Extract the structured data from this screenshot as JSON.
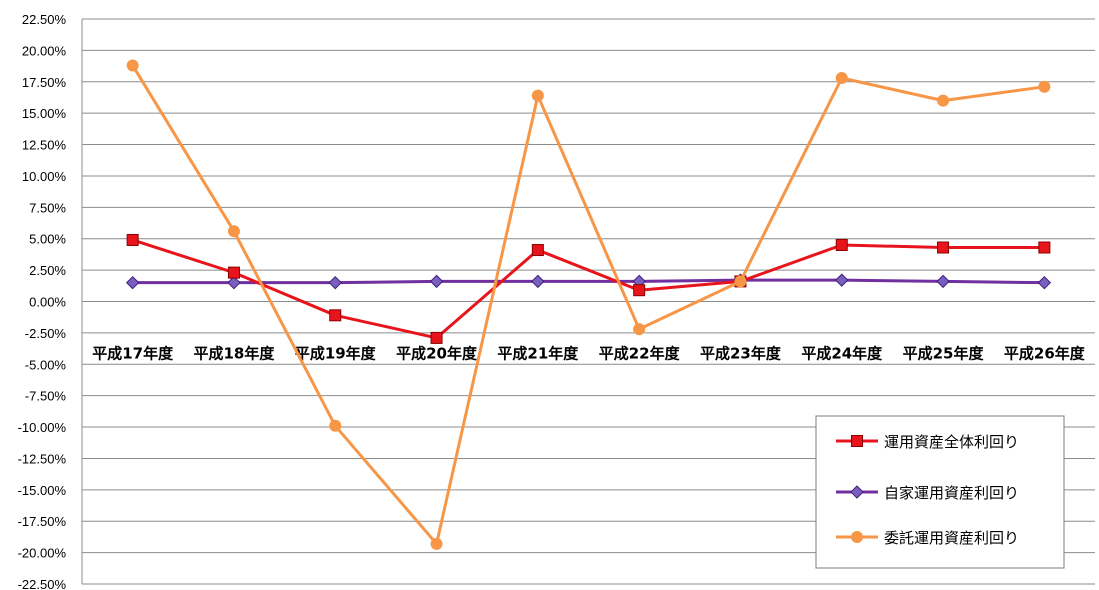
{
  "chart_data": {
    "type": "line",
    "title": "",
    "xlabel": "",
    "ylabel": "",
    "categories": [
      "平成17年度",
      "平成18年度",
      "平成19年度",
      "平成20年度",
      "平成21年度",
      "平成22年度",
      "平成23年度",
      "平成24年度",
      "平成25年度",
      "平成26年度"
    ],
    "ylim": [
      -22.5,
      22.5
    ],
    "y_ticks": [
      22.5,
      20,
      17.5,
      15,
      12.5,
      10,
      7.5,
      5,
      2.5,
      0,
      -2.5,
      -5,
      -7.5,
      -10,
      -12.5,
      -15,
      -17.5,
      -20,
      -22.5
    ],
    "y_tick_labels": [
      "22.50%",
      "20.00%",
      "17.50%",
      "15.00%",
      "12.50%",
      "10.00%",
      "7.50%",
      "5.00%",
      "2.50%",
      "0.00%",
      "-2.50%",
      "-5.00%",
      "-7.50%",
      "-10.00%",
      "-12.50%",
      "-15.00%",
      "-17.50%",
      "-20.00%",
      "-22.50%"
    ],
    "grid": true,
    "legend_position": "bottom-right",
    "series": [
      {
        "name": "運用資産全体利回り",
        "color": "#e8141c",
        "marker": "square",
        "values": [
          4.9,
          2.3,
          -1.1,
          -2.9,
          4.1,
          0.9,
          1.6,
          4.5,
          4.3,
          4.3
        ]
      },
      {
        "name": "自家運用資産利回り",
        "color": "#7030a0",
        "marker": "diamond",
        "values": [
          1.5,
          1.5,
          1.5,
          1.6,
          1.6,
          1.6,
          1.7,
          1.7,
          1.6,
          1.5
        ]
      },
      {
        "name": "委託運用資産利回り",
        "color": "#f79646",
        "marker": "circle",
        "values": [
          18.8,
          5.6,
          -9.9,
          -19.3,
          16.4,
          -2.2,
          1.6,
          17.8,
          16.0,
          17.1
        ]
      }
    ]
  }
}
